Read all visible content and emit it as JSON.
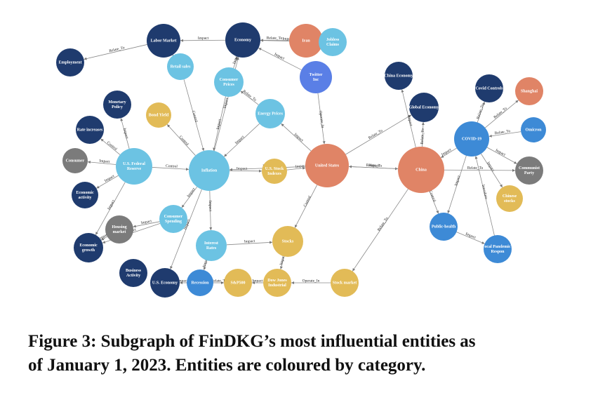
{
  "figure": {
    "nodes": [
      {
        "lines": [
          "Labor Market"
        ],
        "color": "#1f3b6e"
      },
      {
        "lines": [
          "Economy"
        ],
        "color": "#1f3b6e"
      },
      {
        "lines": [
          "Iran"
        ],
        "color": "#e08466"
      },
      {
        "lines": [
          "Jobless",
          "Claims"
        ],
        "color": "#6cc3e3"
      },
      {
        "lines": [
          "Employment"
        ],
        "color": "#1f3b6e"
      },
      {
        "lines": [
          "Retail sales"
        ],
        "color": "#6cc3e3"
      },
      {
        "lines": [
          "Twitter",
          "Inc"
        ],
        "color": "#5a7fe6"
      },
      {
        "lines": [
          "China Economy"
        ],
        "color": "#1f3b6e"
      },
      {
        "lines": [
          "Consumer",
          "Prices"
        ],
        "color": "#6cc3e3"
      },
      {
        "lines": [
          "Covid Controls"
        ],
        "color": "#1f3b6e"
      },
      {
        "lines": [
          "Shanghai"
        ],
        "color": "#e08466"
      },
      {
        "lines": [
          "Monetary",
          "Policy"
        ],
        "color": "#1f3b6e"
      },
      {
        "lines": [
          "Bond Yield"
        ],
        "color": "#e2bb57"
      },
      {
        "lines": [
          "Energy Prices"
        ],
        "color": "#6cc3e3"
      },
      {
        "lines": [
          "Global Economy"
        ],
        "color": "#1f3b6e"
      },
      {
        "lines": [
          "Rate increases"
        ],
        "color": "#1f3b6e"
      },
      {
        "lines": [
          "COVID-19"
        ],
        "color": "#3d8ad6"
      },
      {
        "lines": [
          "Omicron"
        ],
        "color": "#3d8ad6"
      },
      {
        "lines": [
          "Consumer"
        ],
        "color": "#7b7b7b"
      },
      {
        "lines": [
          "U.S. Federal",
          "Reserve"
        ],
        "color": "#6cc3e3"
      },
      {
        "lines": [
          "Inflation"
        ],
        "color": "#6cc3e3"
      },
      {
        "lines": [
          "U.S. Stock",
          "Indexes"
        ],
        "color": "#e2bb57"
      },
      {
        "lines": [
          "United States"
        ],
        "color": "#e08466"
      },
      {
        "lines": [
          "China"
        ],
        "color": "#e08466"
      },
      {
        "lines": [
          "Communist",
          "Party"
        ],
        "color": "#7b7b7b"
      },
      {
        "lines": [
          "Economic",
          "activity"
        ],
        "color": "#1f3b6e"
      },
      {
        "lines": [
          "Chinese",
          "stocks"
        ],
        "color": "#e2bb57"
      },
      {
        "lines": [
          "Consumer",
          "Spending"
        ],
        "color": "#6cc3e3"
      },
      {
        "lines": [
          "Housing",
          "market"
        ],
        "color": "#7b7b7b"
      },
      {
        "lines": [
          "Public-health"
        ],
        "color": "#3d8ad6"
      },
      {
        "lines": [
          "Stocks"
        ],
        "color": "#e2bb57"
      },
      {
        "lines": [
          "Interest",
          "Rates"
        ],
        "color": "#6cc3e3"
      },
      {
        "lines": [
          "Economic",
          "growth"
        ],
        "color": "#1f3b6e"
      },
      {
        "lines": [
          "ocal Pandemic",
          "Respon"
        ],
        "color": "#3d8ad6"
      },
      {
        "lines": [
          "Business",
          "Activity"
        ],
        "color": "#1f3b6e"
      },
      {
        "lines": [
          "U.S. Economy"
        ],
        "color": "#1f3b6e"
      },
      {
        "lines": [
          "Recession"
        ],
        "color": "#3d8ad6"
      },
      {
        "lines": [
          "S&P500"
        ],
        "color": "#e2bb57"
      },
      {
        "lines": [
          "Dow Jones",
          "Industrial"
        ],
        "color": "#e2bb57"
      },
      {
        "lines": [
          "Stock market"
        ],
        "color": "#e2bb57"
      }
    ],
    "edge_labels": [
      "Impact",
      "Relate_To",
      "Relate_To",
      "Impact",
      "Relate_To",
      "Impact",
      "Impact",
      "Operate_In",
      "Impact",
      "Impact",
      "Relate_To",
      "Impact",
      "Control",
      "Control",
      "Impact",
      "Impact",
      "Impact",
      "Control",
      "Impact",
      "Impact",
      "Impact",
      "Impact",
      "Impact",
      "Relate_To",
      "Relate_To",
      "Relate_To",
      "Impact",
      "Impact",
      "Relate_To",
      "Relate_To",
      "Relate_To",
      "Impact",
      "Impact",
      "Impact",
      "Introduce",
      "Impact",
      "Control",
      "Relate_To",
      "Control",
      "Impact",
      "Impact",
      "Impact",
      "Impact",
      "Impact",
      "Impact",
      "Operate_In",
      "Impact",
      "Relate_To",
      "Impact",
      "Impact",
      "Impact",
      "Impact",
      "Impact",
      "Control",
      "Relate_To"
    ],
    "caption": [
      "Figure 3: Subgraph of FinDKG’s most influential entities as",
      "of January 1, 2023. Entities are coloured by category."
    ]
  }
}
